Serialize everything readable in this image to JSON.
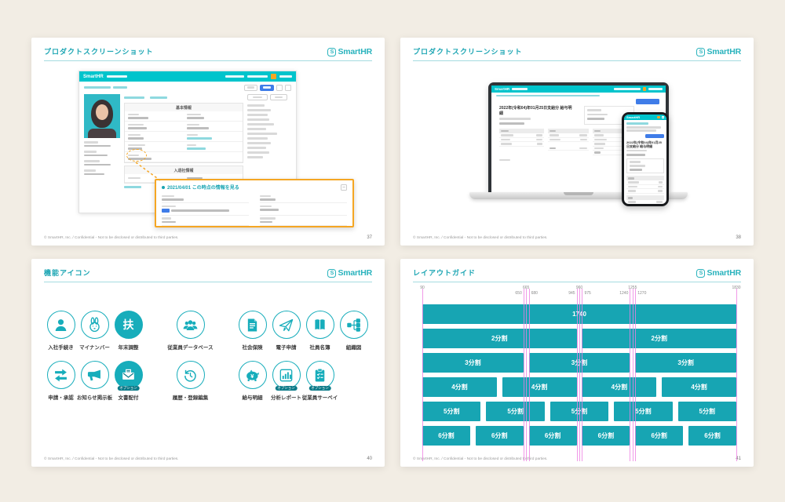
{
  "colors": {
    "brand_teal": "#00c4cc",
    "slide_teal": "#1ba5b3",
    "bar_teal": "#17a5b3",
    "icon_teal": "#17adbb",
    "guide_magenta": "#ee7fe2",
    "highlight_orange": "#f5a623",
    "badge_teal": "#0c7a88",
    "page_bg": "#f2ede4",
    "blue_button": "#3f7ce8"
  },
  "brand": {
    "logo_text": "SmartHR"
  },
  "shared": {
    "footer": "© SmartHR, Inc. / Confidential - Not to be disclosed or distributed to third parties."
  },
  "slides": {
    "product1": {
      "title": "プロダクトスクリーンショット",
      "page_number": "37",
      "app": {
        "brand": "SmartHR",
        "section": "基本情報",
        "subsection": "入退社情報",
        "callout_title": "2021/04/01 この時点の情報を見る",
        "minimize_glyph": "–"
      }
    },
    "product2": {
      "title": "プロダクトスクリーンショット",
      "page_number": "38",
      "mock": {
        "brand": "SmartHR",
        "doc_title": "2022年(令和04)年01月25日支給分 給与明細"
      }
    },
    "icons": {
      "title": "機能アイコン",
      "page_number": "40",
      "rows": [
        {
          "groups": [
            {
              "items": [
                {
                  "label": "入社手続き",
                  "icon": "person"
                },
                {
                  "label": "マイナンバー",
                  "icon": "rabbit"
                },
                {
                  "label": "年末調整",
                  "icon": "kanji-fu",
                  "glyph": "扶",
                  "filled": true
                }
              ]
            },
            {
              "items": [
                {
                  "label": "従業員データベース",
                  "icon": "people"
                }
              ]
            },
            {
              "items": [
                {
                  "label": "社会保険",
                  "icon": "document"
                },
                {
                  "label": "電子申請",
                  "icon": "paper-plane"
                },
                {
                  "label": "社員名簿",
                  "icon": "book"
                },
                {
                  "label": "組織図",
                  "icon": "org-chart"
                }
              ]
            }
          ]
        },
        {
          "groups": [
            {
              "items": [
                {
                  "label": "申請・承認",
                  "icon": "transfer-arrows"
                },
                {
                  "label": "お知らせ掲示板",
                  "icon": "megaphone"
                },
                {
                  "label": "文書配付",
                  "icon": "envelope",
                  "filled": true,
                  "badge": "オプション"
                }
              ]
            },
            {
              "items": [
                {
                  "label": "履歴・登録編集",
                  "icon": "history"
                }
              ]
            },
            {
              "items": [
                {
                  "label": "給与明細",
                  "icon": "piggy-bank"
                },
                {
                  "label": "分析レポート",
                  "icon": "bar-chart",
                  "badge": "オプション"
                },
                {
                  "label": "従業員サーベイ",
                  "icon": "survey",
                  "badge": "オプション"
                }
              ]
            }
          ]
        }
      ]
    },
    "layout": {
      "title": "レイアウトガイド",
      "page_number": "41",
      "guides": [
        {
          "value": 90,
          "tier": 0,
          "align": "center"
        },
        {
          "value": 650,
          "tier": 1,
          "align": "left"
        },
        {
          "value": 665,
          "tier": 0,
          "align": "center"
        },
        {
          "value": 680,
          "tier": 1,
          "align": "right"
        },
        {
          "value": 945,
          "tier": 1,
          "align": "left"
        },
        {
          "value": 960,
          "tier": 0,
          "align": "center"
        },
        {
          "value": 975,
          "tier": 1,
          "align": "right"
        },
        {
          "value": 1240,
          "tier": 1,
          "align": "left"
        },
        {
          "value": 1255,
          "tier": 0,
          "align": "center"
        },
        {
          "value": 1270,
          "tier": 1,
          "align": "right"
        },
        {
          "value": 1830,
          "tier": 0,
          "align": "center"
        }
      ],
      "rows": [
        {
          "label": "1740",
          "count": 1
        },
        {
          "label": "2分割",
          "count": 2
        },
        {
          "label": "3分割",
          "count": 3
        },
        {
          "label": "4分割",
          "count": 4
        },
        {
          "label": "5分割",
          "count": 5
        },
        {
          "label": "6分割",
          "count": 6
        }
      ]
    }
  }
}
